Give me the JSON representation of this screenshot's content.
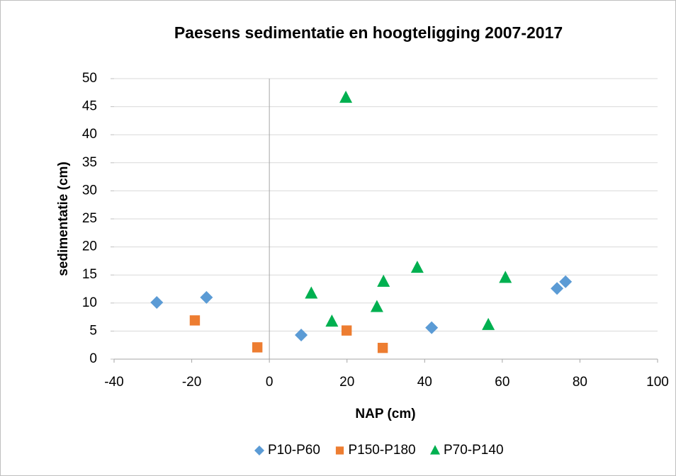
{
  "chart_data": {
    "type": "scatter",
    "title": "Paesens sedimentatie en hoogteligging 2007-2017",
    "x_label": "NAP (cm)",
    "y_label": "sedimentatie (cm)",
    "xlim": [
      -40,
      100
    ],
    "xticks": [
      -40,
      -20,
      0,
      20,
      40,
      60,
      80,
      100
    ],
    "ylim": [
      0,
      50
    ],
    "yticks": [
      0,
      5,
      10,
      15,
      20,
      25,
      30,
      35,
      40,
      45,
      50
    ],
    "grid": true,
    "legend": "bottom",
    "series": [
      {
        "name": "P10-P60",
        "color": "#5b9bd5",
        "marker": "diamond",
        "x": [
          -29.0,
          -16.2,
          8.2,
          41.8,
          74.1,
          76.3
        ],
        "values": [
          10.1,
          11.0,
          4.3,
          5.6,
          12.6,
          13.8
        ]
      },
      {
        "name": "P150-P180",
        "color": "#ed7d31",
        "marker": "square",
        "x": [
          -19.2,
          -3.1,
          19.9,
          29.2
        ],
        "values": [
          6.9,
          2.1,
          5.1,
          2.0
        ]
      },
      {
        "name": "P70-P140",
        "color": "#00b050",
        "marker": "triangle",
        "x": [
          19.7,
          10.8,
          16.1,
          27.7,
          29.4,
          38.1,
          56.4,
          60.8
        ],
        "values": [
          46.6,
          11.7,
          6.7,
          9.3,
          13.8,
          16.3,
          6.1,
          14.5
        ]
      }
    ]
  }
}
